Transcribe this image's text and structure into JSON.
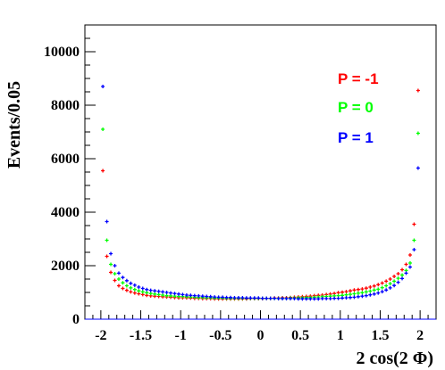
{
  "chart_data": {
    "type": "scatter",
    "title": "",
    "xlabel": "2 cos(2 Φ)",
    "ylabel": "Events/0.05",
    "xlim": [
      -2.2,
      2.2
    ],
    "ylim": [
      0,
      11000
    ],
    "xticks": [
      -2,
      -1.5,
      -1,
      -0.5,
      0,
      0.5,
      1,
      1.5,
      2
    ],
    "xtick_labels": [
      "-2",
      "-1.5",
      "-1",
      "-0.5",
      "0",
      "0.5",
      "1",
      "1.5",
      "2"
    ],
    "yticks": [
      0,
      2000,
      4000,
      6000,
      8000,
      10000
    ],
    "ytick_labels": [
      "0",
      "2000",
      "4000",
      "6000",
      "8000",
      "10000"
    ],
    "grid": false,
    "legend_position": "top-right",
    "series": [
      {
        "name": "P = -1",
        "color": "#ff0000",
        "x": [
          -1.975,
          -1.925,
          -1.875,
          -1.825,
          -1.775,
          -1.725,
          -1.675,
          -1.625,
          -1.575,
          -1.525,
          -1.475,
          -1.425,
          -1.375,
          -1.325,
          -1.275,
          -1.225,
          -1.175,
          -1.125,
          -1.075,
          -1.025,
          -0.975,
          -0.925,
          -0.875,
          -0.825,
          -0.775,
          -0.725,
          -0.675,
          -0.625,
          -0.575,
          -0.525,
          -0.475,
          -0.425,
          -0.375,
          -0.325,
          -0.275,
          -0.225,
          -0.175,
          -0.125,
          -0.075,
          -0.025,
          0.025,
          0.075,
          0.125,
          0.175,
          0.225,
          0.275,
          0.325,
          0.375,
          0.425,
          0.475,
          0.525,
          0.575,
          0.625,
          0.675,
          0.725,
          0.775,
          0.825,
          0.875,
          0.925,
          0.975,
          1.025,
          1.075,
          1.125,
          1.175,
          1.225,
          1.275,
          1.325,
          1.375,
          1.425,
          1.475,
          1.525,
          1.575,
          1.625,
          1.675,
          1.725,
          1.775,
          1.825,
          1.875,
          1.925,
          1.975
        ],
        "y": [
          5550,
          2350,
          1750,
          1450,
          1250,
          1150,
          1080,
          1020,
          980,
          950,
          920,
          890,
          870,
          860,
          850,
          840,
          830,
          820,
          810,
          800,
          800,
          800,
          790,
          780,
          780,
          770,
          770,
          770,
          760,
          760,
          760,
          760,
          760,
          760,
          760,
          760,
          760,
          770,
          770,
          770,
          770,
          780,
          780,
          790,
          790,
          800,
          800,
          810,
          820,
          830,
          840,
          850,
          860,
          880,
          890,
          900,
          920,
          940,
          960,
          990,
          1010,
          1030,
          1060,
          1090,
          1110,
          1130,
          1160,
          1200,
          1240,
          1290,
          1350,
          1420,
          1500,
          1600,
          1700,
          1850,
          2050,
          2400,
          3550,
          8550
        ]
      },
      {
        "name": "P = 0",
        "color": "#00ff00",
        "x": [
          -1.975,
          -1.925,
          -1.875,
          -1.825,
          -1.775,
          -1.725,
          -1.675,
          -1.625,
          -1.575,
          -1.525,
          -1.475,
          -1.425,
          -1.375,
          -1.325,
          -1.275,
          -1.225,
          -1.175,
          -1.125,
          -1.075,
          -1.025,
          -0.975,
          -0.925,
          -0.875,
          -0.825,
          -0.775,
          -0.725,
          -0.675,
          -0.625,
          -0.575,
          -0.525,
          -0.475,
          -0.425,
          -0.375,
          -0.325,
          -0.275,
          -0.225,
          -0.175,
          -0.125,
          -0.075,
          -0.025,
          0.025,
          0.075,
          0.125,
          0.175,
          0.225,
          0.275,
          0.325,
          0.375,
          0.425,
          0.475,
          0.525,
          0.575,
          0.625,
          0.675,
          0.725,
          0.775,
          0.825,
          0.875,
          0.925,
          0.975,
          1.025,
          1.075,
          1.125,
          1.175,
          1.225,
          1.275,
          1.325,
          1.375,
          1.425,
          1.475,
          1.525,
          1.575,
          1.625,
          1.675,
          1.725,
          1.775,
          1.825,
          1.875,
          1.925,
          1.975
        ],
        "y": [
          7100,
          2950,
          2050,
          1700,
          1500,
          1360,
          1250,
          1170,
          1110,
          1060,
          1020,
          990,
          960,
          940,
          920,
          900,
          880,
          870,
          860,
          850,
          850,
          840,
          830,
          820,
          810,
          810,
          800,
          800,
          790,
          790,
          790,
          780,
          780,
          780,
          780,
          780,
          780,
          780,
          780,
          780,
          780,
          780,
          780,
          780,
          780,
          780,
          780,
          790,
          790,
          800,
          800,
          810,
          810,
          820,
          830,
          840,
          850,
          860,
          870,
          880,
          890,
          910,
          930,
          950,
          970,
          990,
          1020,
          1050,
          1090,
          1120,
          1180,
          1250,
          1330,
          1420,
          1530,
          1650,
          1820,
          2100,
          2950,
          6950
        ]
      },
      {
        "name": "P = 1",
        "color": "#0000ff",
        "x": [
          -1.975,
          -1.925,
          -1.875,
          -1.825,
          -1.775,
          -1.725,
          -1.675,
          -1.625,
          -1.575,
          -1.525,
          -1.475,
          -1.425,
          -1.375,
          -1.325,
          -1.275,
          -1.225,
          -1.175,
          -1.125,
          -1.075,
          -1.025,
          -0.975,
          -0.925,
          -0.875,
          -0.825,
          -0.775,
          -0.725,
          -0.675,
          -0.625,
          -0.575,
          -0.525,
          -0.475,
          -0.425,
          -0.375,
          -0.325,
          -0.275,
          -0.225,
          -0.175,
          -0.125,
          -0.075,
          -0.025,
          0.025,
          0.075,
          0.125,
          0.175,
          0.225,
          0.275,
          0.325,
          0.375,
          0.425,
          0.475,
          0.525,
          0.575,
          0.625,
          0.675,
          0.725,
          0.775,
          0.825,
          0.875,
          0.925,
          0.975,
          1.025,
          1.075,
          1.125,
          1.175,
          1.225,
          1.275,
          1.325,
          1.375,
          1.425,
          1.475,
          1.525,
          1.575,
          1.625,
          1.675,
          1.725,
          1.775,
          1.825,
          1.875,
          1.925,
          1.975
        ],
        "y": [
          8700,
          3650,
          2450,
          2000,
          1720,
          1560,
          1440,
          1340,
          1270,
          1200,
          1150,
          1110,
          1080,
          1060,
          1040,
          1020,
          1000,
          980,
          960,
          940,
          920,
          900,
          890,
          880,
          870,
          860,
          850,
          840,
          830,
          820,
          820,
          810,
          810,
          800,
          800,
          800,
          790,
          790,
          790,
          790,
          780,
          780,
          780,
          780,
          770,
          770,
          770,
          770,
          770,
          760,
          760,
          760,
          760,
          760,
          760,
          770,
          770,
          770,
          780,
          780,
          790,
          800,
          810,
          820,
          840,
          860,
          880,
          910,
          940,
          980,
          1030,
          1090,
          1170,
          1260,
          1380,
          1520,
          1720,
          1950,
          2600,
          5650
        ]
      }
    ]
  }
}
